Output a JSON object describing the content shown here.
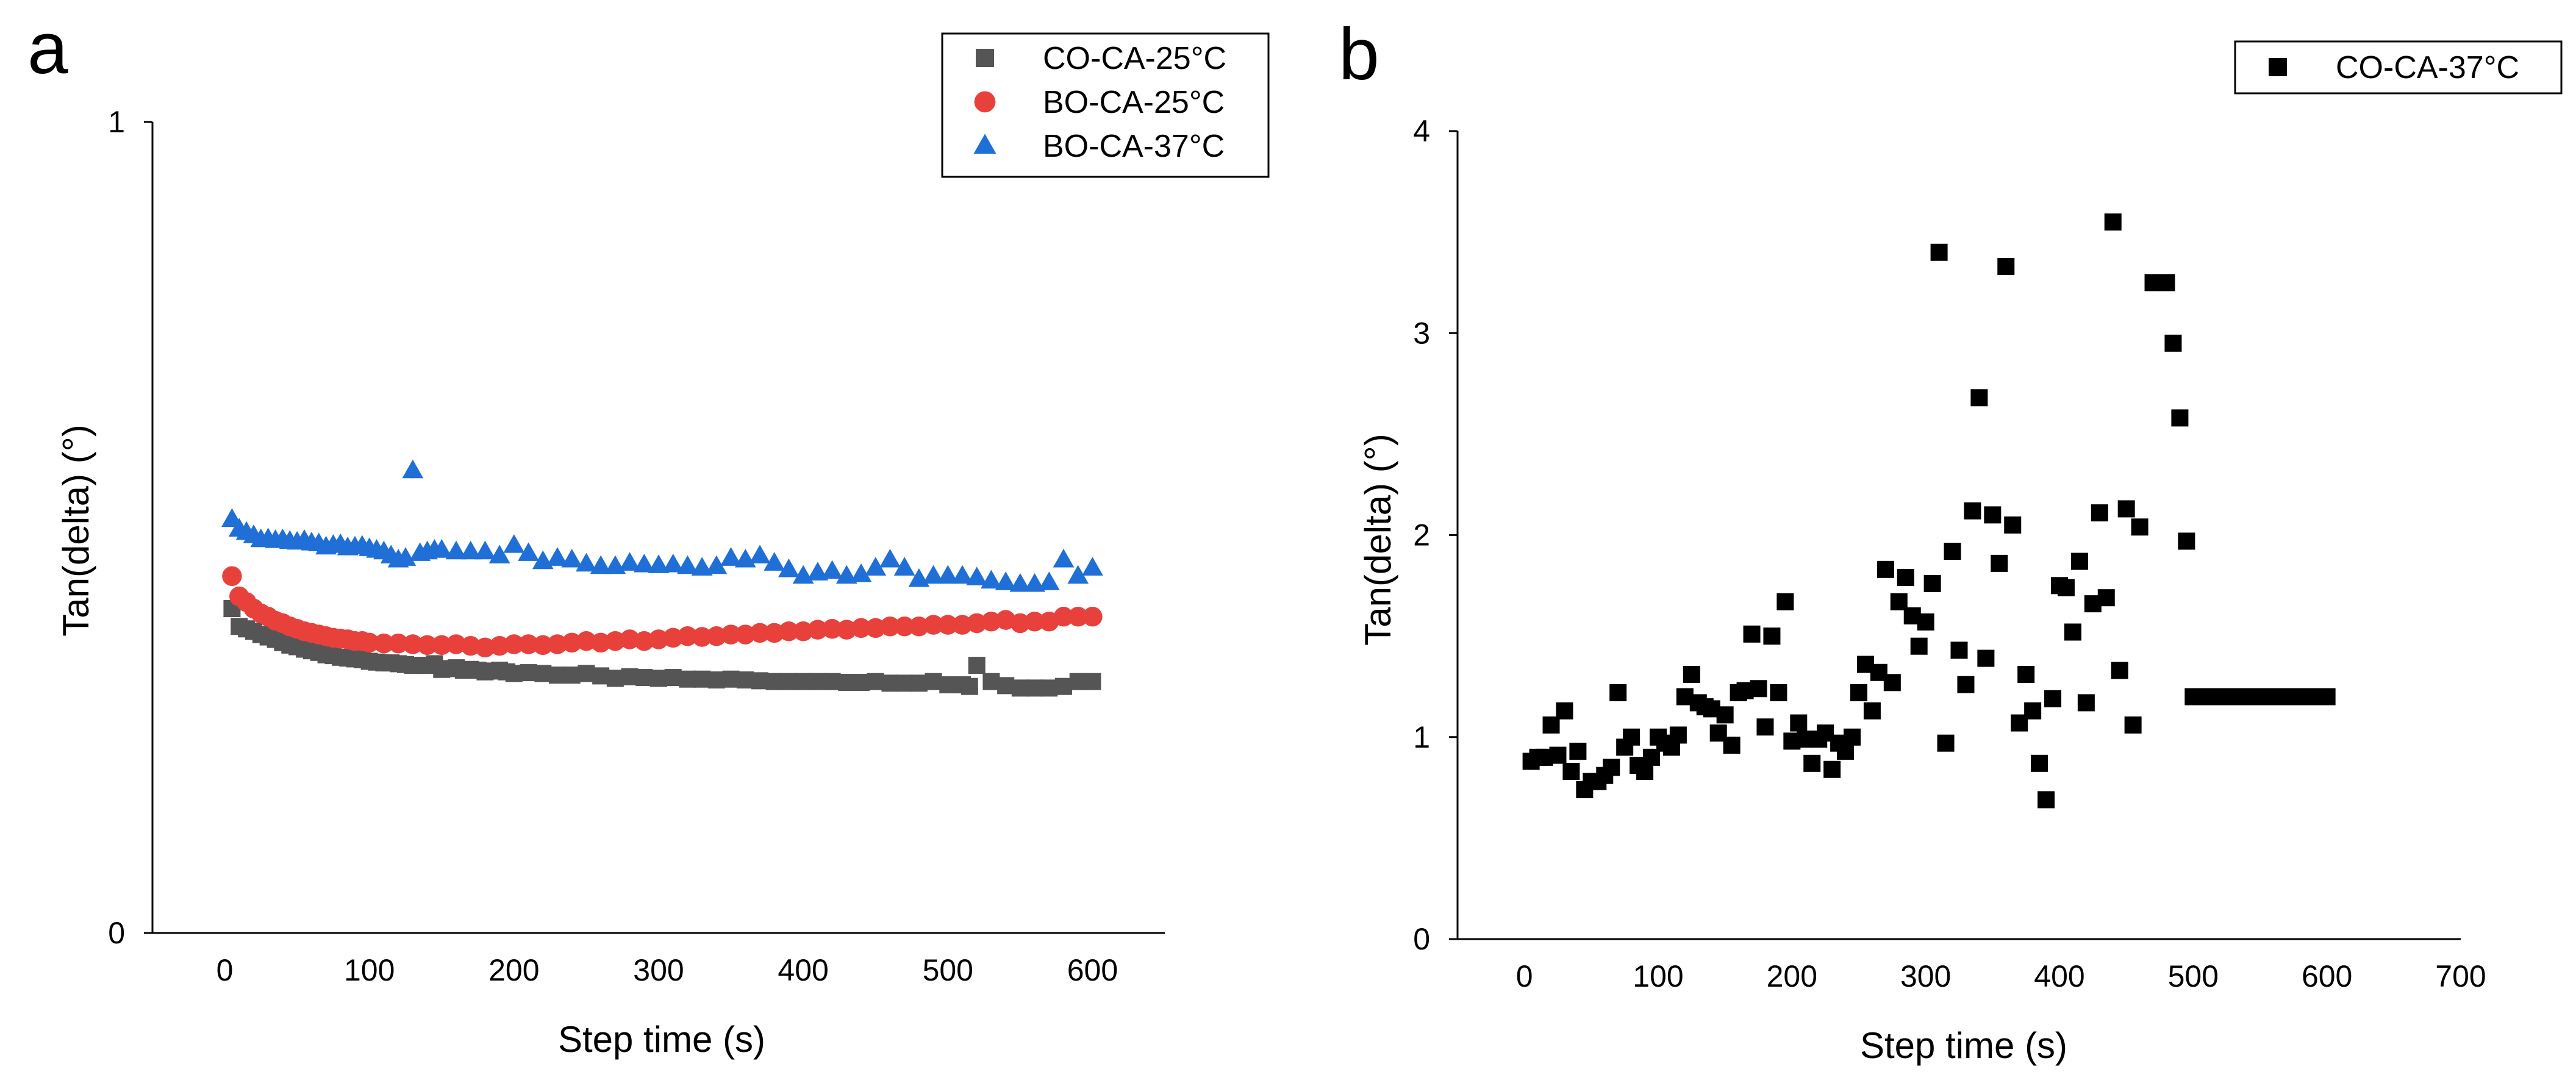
{
  "chart_data": [
    {
      "panel_label": "a",
      "type": "scatter",
      "xlabel": "Step time (s)",
      "ylabel": "Tan(delta) (°)",
      "xlim": [
        -50,
        650
      ],
      "ylim": [
        0,
        1
      ],
      "x_ticks": [
        0,
        100,
        200,
        300,
        400,
        500,
        600
      ],
      "x_tick_labels": [
        "0",
        "100",
        "200",
        "300",
        "400",
        "500",
        "600"
      ],
      "y_ticks": [
        0,
        1
      ],
      "y_tick_labels": [
        "0",
        "1"
      ],
      "grid": false,
      "legend_position": "top-right",
      "series": [
        {
          "name": "CO-CA-25°C",
          "marker": "square",
          "color": "#555555",
          "x": [
            5,
            10,
            15,
            20,
            25,
            30,
            35,
            40,
            45,
            50,
            55,
            60,
            65,
            70,
            75,
            80,
            85,
            90,
            95,
            100,
            105,
            110,
            115,
            120,
            125,
            130,
            135,
            140,
            145,
            150,
            155,
            160,
            165,
            170,
            175,
            180,
            185,
            190,
            195,
            200,
            210,
            220,
            230,
            240,
            250,
            260,
            270,
            280,
            290,
            300,
            310,
            320,
            330,
            340,
            350,
            360,
            370,
            380,
            390,
            400,
            410,
            420,
            430,
            440,
            450,
            460,
            470,
            480,
            490,
            500,
            510,
            515,
            520,
            530,
            540,
            550,
            560,
            570,
            580,
            590,
            600
          ],
          "y": [
            0.4,
            0.378,
            0.375,
            0.372,
            0.368,
            0.365,
            0.362,
            0.358,
            0.355,
            0.353,
            0.35,
            0.348,
            0.346,
            0.343,
            0.342,
            0.34,
            0.339,
            0.338,
            0.337,
            0.335,
            0.334,
            0.333,
            0.333,
            0.332,
            0.331,
            0.33,
            0.33,
            0.33,
            0.332,
            0.325,
            0.326,
            0.327,
            0.324,
            0.325,
            0.324,
            0.322,
            0.323,
            0.324,
            0.322,
            0.32,
            0.321,
            0.32,
            0.318,
            0.318,
            0.32,
            0.317,
            0.314,
            0.316,
            0.315,
            0.314,
            0.315,
            0.313,
            0.313,
            0.312,
            0.313,
            0.312,
            0.311,
            0.31,
            0.31,
            0.31,
            0.31,
            0.31,
            0.309,
            0.309,
            0.31,
            0.308,
            0.308,
            0.308,
            0.31,
            0.306,
            0.306,
            0.304,
            0.33,
            0.31,
            0.305,
            0.302,
            0.302,
            0.302,
            0.304,
            0.31,
            0.31
          ]
        },
        {
          "name": "BO-CA-25°C",
          "marker": "circle",
          "color": "#e8413c",
          "x": [
            5,
            10,
            15,
            20,
            25,
            30,
            35,
            40,
            45,
            50,
            55,
            60,
            65,
            70,
            75,
            80,
            85,
            90,
            95,
            100,
            110,
            120,
            130,
            140,
            150,
            160,
            170,
            180,
            190,
            200,
            210,
            220,
            230,
            240,
            250,
            260,
            270,
            280,
            290,
            300,
            310,
            320,
            330,
            340,
            350,
            360,
            370,
            380,
            390,
            400,
            410,
            420,
            430,
            440,
            450,
            460,
            470,
            480,
            490,
            500,
            510,
            520,
            530,
            540,
            550,
            560,
            570,
            580,
            590,
            600
          ],
          "y": [
            0.44,
            0.415,
            0.408,
            0.4,
            0.394,
            0.39,
            0.385,
            0.382,
            0.378,
            0.375,
            0.372,
            0.37,
            0.368,
            0.366,
            0.364,
            0.363,
            0.362,
            0.36,
            0.36,
            0.358,
            0.357,
            0.357,
            0.356,
            0.355,
            0.355,
            0.356,
            0.354,
            0.352,
            0.354,
            0.356,
            0.356,
            0.355,
            0.356,
            0.358,
            0.36,
            0.358,
            0.36,
            0.362,
            0.36,
            0.362,
            0.364,
            0.366,
            0.365,
            0.366,
            0.368,
            0.368,
            0.37,
            0.37,
            0.372,
            0.372,
            0.374,
            0.375,
            0.374,
            0.376,
            0.376,
            0.378,
            0.378,
            0.378,
            0.38,
            0.38,
            0.38,
            0.382,
            0.384,
            0.386,
            0.382,
            0.384,
            0.384,
            0.39,
            0.39,
            0.39
          ]
        },
        {
          "name": "BO-CA-37°C",
          "marker": "triangle",
          "color": "#1f6fd6",
          "x": [
            5,
            10,
            15,
            20,
            25,
            30,
            35,
            40,
            45,
            50,
            55,
            60,
            65,
            70,
            75,
            80,
            85,
            90,
            95,
            100,
            105,
            110,
            115,
            120,
            125,
            130,
            135,
            140,
            145,
            150,
            160,
            170,
            180,
            190,
            200,
            210,
            220,
            230,
            240,
            250,
            260,
            270,
            280,
            290,
            300,
            310,
            320,
            330,
            340,
            350,
            360,
            370,
            380,
            390,
            400,
            410,
            420,
            430,
            440,
            450,
            460,
            470,
            480,
            490,
            500,
            510,
            520,
            530,
            540,
            550,
            560,
            570,
            580,
            590,
            600
          ],
          "y": [
            0.51,
            0.498,
            0.494,
            0.49,
            0.485,
            0.486,
            0.484,
            0.485,
            0.483,
            0.482,
            0.484,
            0.481,
            0.48,
            0.476,
            0.478,
            0.479,
            0.475,
            0.476,
            0.477,
            0.474,
            0.472,
            0.47,
            0.465,
            0.46,
            0.462,
            0.57,
            0.468,
            0.47,
            0.472,
            0.472,
            0.47,
            0.47,
            0.47,
            0.465,
            0.478,
            0.468,
            0.458,
            0.462,
            0.46,
            0.455,
            0.452,
            0.452,
            0.456,
            0.454,
            0.453,
            0.454,
            0.452,
            0.45,
            0.452,
            0.462,
            0.46,
            0.465,
            0.456,
            0.448,
            0.44,
            0.444,
            0.446,
            0.44,
            0.442,
            0.45,
            0.46,
            0.45,
            0.436,
            0.44,
            0.44,
            0.44,
            0.438,
            0.434,
            0.432,
            0.43,
            0.43,
            0.432,
            0.46,
            0.44,
            0.45
          ]
        }
      ]
    },
    {
      "panel_label": "b",
      "type": "scatter",
      "xlabel": "Step time (s)",
      "ylabel": "Tan(delta) (°)",
      "xlim": [
        -50,
        700
      ],
      "ylim": [
        0,
        4
      ],
      "x_ticks": [
        0,
        100,
        200,
        300,
        400,
        500,
        600,
        700
      ],
      "x_tick_labels": [
        "0",
        "100",
        "200",
        "300",
        "400",
        "500",
        "600",
        "700"
      ],
      "y_ticks": [
        0,
        1,
        2,
        3,
        4
      ],
      "y_tick_labels": [
        "0",
        "1",
        "2",
        "3",
        "4"
      ],
      "grid": false,
      "legend_position": "top-right",
      "series": [
        {
          "name": "CO-CA-37°C",
          "marker": "square",
          "color": "#000000",
          "x": [
            5,
            10,
            15,
            20,
            25,
            30,
            35,
            40,
            45,
            50,
            55,
            60,
            65,
            70,
            75,
            80,
            85,
            90,
            95,
            100,
            105,
            110,
            115,
            120,
            125,
            130,
            135,
            140,
            145,
            150,
            155,
            160,
            165,
            170,
            175,
            180,
            185,
            190,
            195,
            200,
            205,
            210,
            215,
            220,
            225,
            230,
            235,
            240,
            245,
            250,
            255,
            260,
            265,
            270,
            275,
            280,
            285,
            290,
            295,
            300,
            305,
            310,
            315,
            320,
            325,
            330,
            335,
            340,
            345,
            350,
            355,
            360,
            365,
            370,
            375,
            380,
            385,
            390,
            395,
            400,
            405,
            410,
            415,
            420,
            425,
            430,
            435,
            440,
            445,
            450,
            455,
            460,
            470,
            480,
            485,
            490,
            495,
            500,
            505,
            510,
            515,
            520,
            530,
            540,
            545,
            550,
            555,
            560,
            565,
            570,
            575,
            580,
            585,
            590,
            595,
            600
          ],
          "y": [
            0.88,
            0.9,
            0.9,
            1.06,
            0.91,
            1.13,
            0.83,
            0.93,
            0.74,
            0.78,
            0.78,
            0.81,
            0.85,
            1.22,
            0.95,
            1.0,
            0.86,
            0.83,
            0.9,
            1.0,
            0.97,
            0.95,
            1.01,
            1.2,
            1.31,
            1.17,
            1.15,
            1.14,
            1.02,
            1.11,
            0.96,
            1.22,
            1.23,
            1.51,
            1.24,
            1.05,
            1.5,
            1.22,
            1.67,
            0.98,
            1.07,
            0.99,
            0.87,
            0.99,
            1.02,
            0.84,
            0.97,
            0.93,
            1.0,
            1.22,
            1.36,
            1.13,
            1.32,
            1.83,
            1.27,
            1.67,
            1.79,
            1.6,
            1.45,
            1.57,
            1.76,
            3.4,
            0.97,
            1.92,
            1.43,
            1.26,
            2.12,
            2.68,
            1.39,
            2.1,
            1.86,
            3.33,
            2.05,
            1.07,
            1.31,
            1.13,
            0.87,
            0.69,
            1.19,
            1.75,
            1.74,
            1.52,
            1.87,
            1.17,
            1.66,
            2.11,
            1.69,
            3.55,
            1.33,
            2.13,
            1.06,
            2.04,
            3.25,
            3.25,
            2.95,
            2.58,
            1.97,
            1.2,
            1.2,
            1.2,
            1.2,
            1.2,
            1.2,
            1.2,
            1.2,
            1.2,
            1.2,
            1.2,
            1.2,
            1.2,
            1.2,
            1.2,
            1.2,
            1.2,
            1.2,
            1.2
          ]
        }
      ]
    }
  ]
}
